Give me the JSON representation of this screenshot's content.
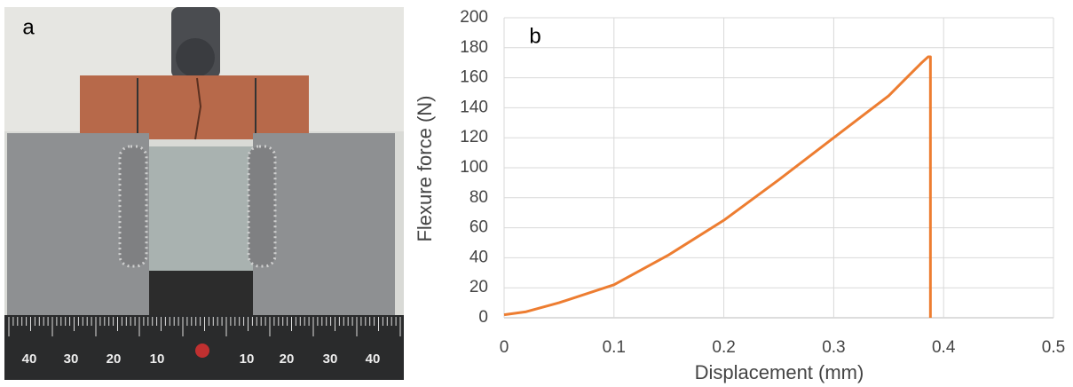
{
  "photo": {
    "label": "a",
    "ruler_labels": [
      "40",
      "30",
      "20",
      "10",
      "10",
      "20",
      "30",
      "40"
    ]
  },
  "chart_data": {
    "type": "line",
    "panel_label": "b",
    "x_label": "Displacement (mm)",
    "y_label": "Flexure force (N)",
    "x": [
      0,
      0.02,
      0.05,
      0.1,
      0.15,
      0.2,
      0.25,
      0.3,
      0.35,
      0.38,
      0.386,
      0.388,
      0.388
    ],
    "series": [
      {
        "color": "#ed7d31",
        "values": [
          2,
          4,
          10,
          22,
          42,
          65,
          92,
          120,
          148,
          170,
          174,
          174,
          0
        ]
      }
    ],
    "xlim": [
      0,
      0.5
    ],
    "xticks": [
      0,
      0.1,
      0.2,
      0.3,
      0.4,
      0.5
    ],
    "ylim": [
      0,
      200
    ],
    "yticks": [
      0,
      20,
      40,
      60,
      80,
      100,
      120,
      140,
      160,
      180,
      200
    ],
    "grid": true
  }
}
